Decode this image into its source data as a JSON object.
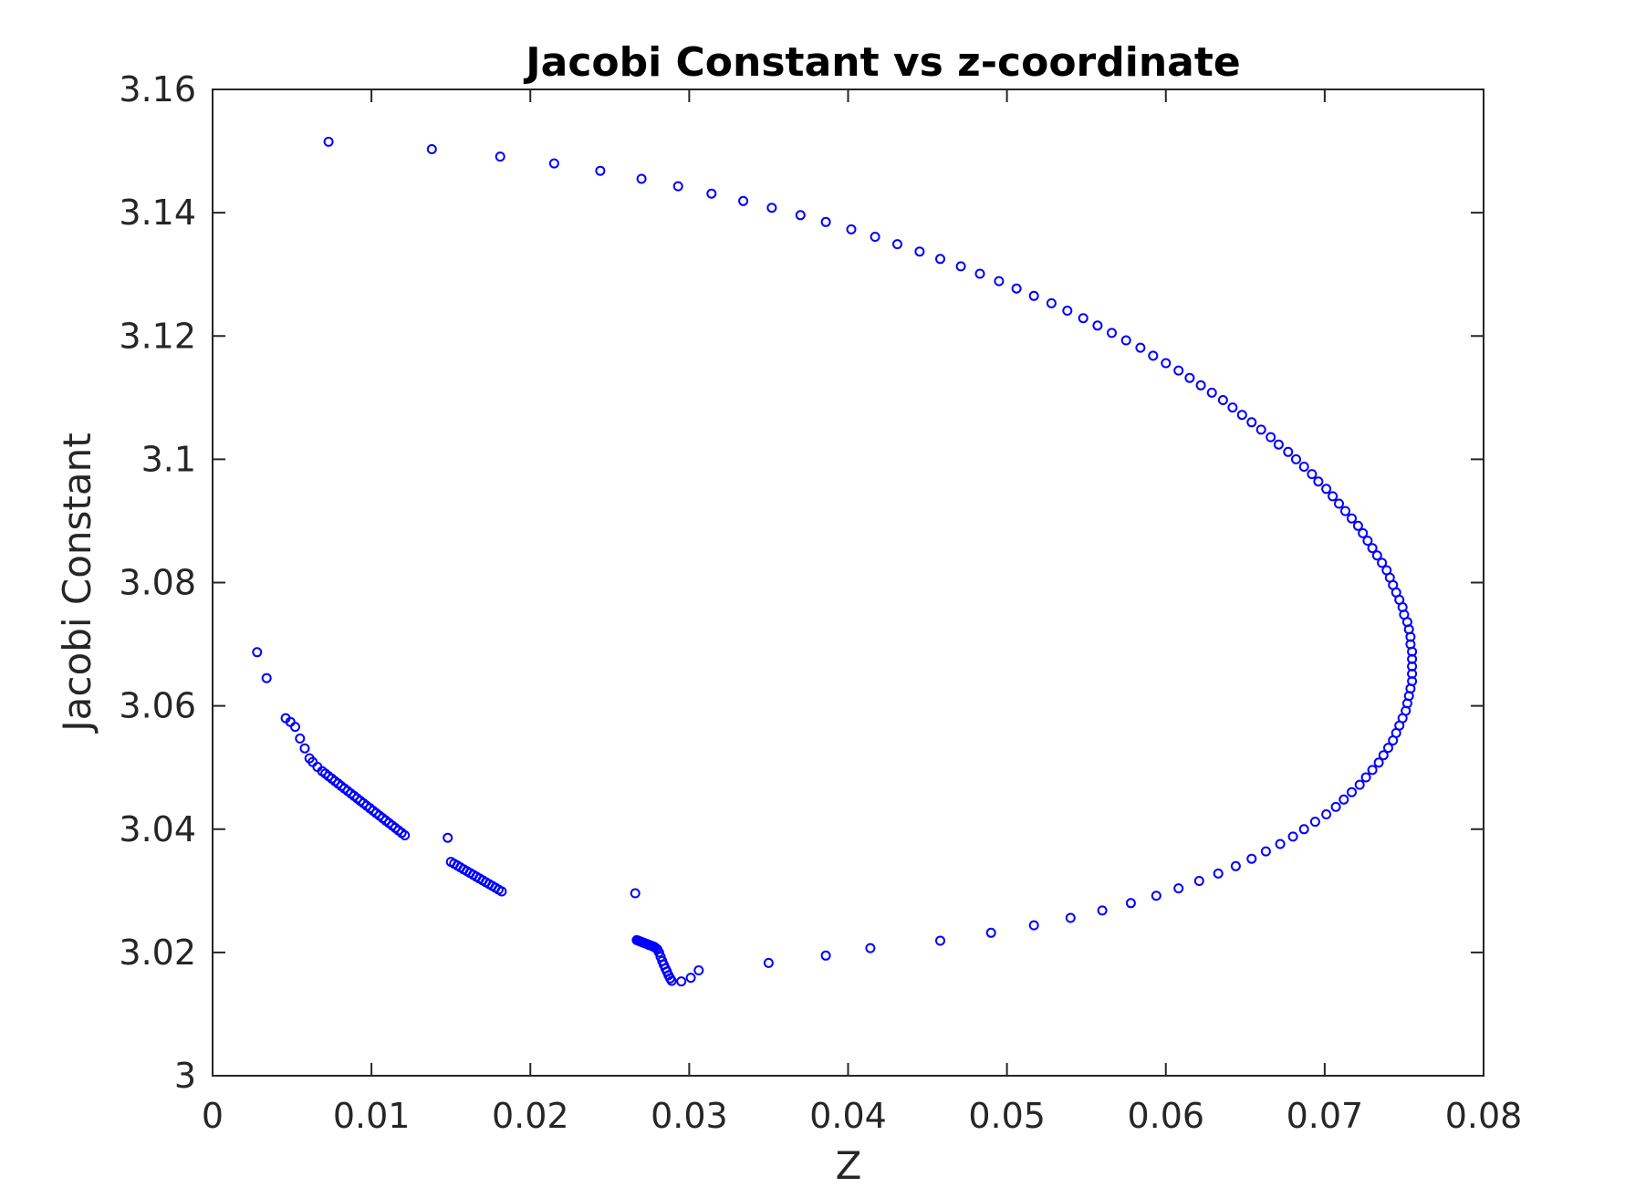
{
  "chart_data": {
    "type": "scatter",
    "title": "Jacobi Constant vs z-coordinate",
    "xlabel": "Z",
    "ylabel": "Jacobi Constant",
    "xlim": [
      0,
      0.08
    ],
    "ylim": [
      3.0,
      3.16
    ],
    "xticks": [
      "0",
      "0.01",
      "0.02",
      "0.03",
      "0.04",
      "0.05",
      "0.06",
      "0.07",
      "0.08"
    ],
    "yticks": [
      "3",
      "3.02",
      "3.04",
      "3.06",
      "3.08",
      "3.1",
      "3.12",
      "3.14",
      "3.16"
    ],
    "grid": false,
    "marker": "open-circle",
    "marker_color": "#0000ff",
    "axes_color": "#262626",
    "series": [
      {
        "x": [
          0.0073,
          0.0138,
          0.0181,
          0.0215,
          0.0244,
          0.027,
          0.0293,
          0.0314,
          0.0334,
          0.0352,
          0.037,
          0.0386,
          0.0402,
          0.0417,
          0.0431,
          0.0445,
          0.0458,
          0.0471,
          0.0483,
          0.0495,
          0.0506,
          0.0517,
          0.0528,
          0.0538,
          0.0548,
          0.0557,
          0.0566,
          0.0575,
          0.0584,
          0.0592,
          0.06,
          0.0608,
          0.0615,
          0.0622,
          0.0629,
          0.0636,
          0.0642,
          0.0648,
          0.0654,
          0.066,
          0.0666,
          0.0671,
          0.0677,
          0.0682,
          0.0687,
          0.0692,
          0.0696,
          0.0701,
          0.0705,
          0.0709,
          0.0713,
          0.0717,
          0.0721,
          0.0724,
          0.0727,
          0.073,
          0.0733,
          0.0736,
          0.0739,
          0.0741,
          0.0743,
          0.0745,
          0.0747,
          0.0749,
          0.075,
          0.0752,
          0.0753,
          0.0754,
          0.0754,
          0.0755,
          0.0755,
          0.0755,
          0.0755,
          0.0755,
          0.0754,
          0.0753,
          0.0752,
          0.0751,
          0.0749,
          0.0747,
          0.0745,
          0.0743,
          0.074,
          0.0737,
          0.0734,
          0.073,
          0.0726,
          0.0722,
          0.0717,
          0.0712,
          0.0707,
          0.0701,
          0.0694,
          0.0687,
          0.068,
          0.0672,
          0.0663,
          0.0654,
          0.0644,
          0.0633,
          0.0621,
          0.0608,
          0.0594,
          0.0578,
          0.056,
          0.054,
          0.0517,
          0.049,
          0.0458,
          0.0414,
          0.0386,
          0.035,
          0.0306,
          0.0301,
          0.0295,
          0.0289,
          0.0288,
          0.0287,
          0.0286,
          0.0285,
          0.0284,
          0.0283,
          0.0282,
          0.0281,
          0.028,
          0.0279,
          0.0278,
          0.0277,
          0.0276,
          0.0275,
          0.0274,
          0.0273,
          0.0272,
          0.0271,
          0.027,
          0.0269,
          0.0268,
          0.0267,
          0.0266,
          0.0182,
          0.018,
          0.0178,
          0.0176,
          0.0174,
          0.0172,
          0.017,
          0.0168,
          0.0166,
          0.0164,
          0.0162,
          0.016,
          0.0158,
          0.0156,
          0.0154,
          0.0152,
          0.015,
          0.0148,
          0.0121,
          0.0119,
          0.0117,
          0.0115,
          0.0113,
          0.0111,
          0.0109,
          0.0107,
          0.0105,
          0.0103,
          0.0101,
          0.0099,
          0.0097,
          0.0095,
          0.0093,
          0.0091,
          0.0089,
          0.0087,
          0.0085,
          0.0083,
          0.0081,
          0.0079,
          0.0077,
          0.0075,
          0.0073,
          0.0071,
          0.0069,
          0.0066,
          0.0063,
          0.0061,
          0.0058,
          0.0055,
          0.0052,
          0.0049,
          0.0046,
          0.0034,
          0.0028
        ],
        "y": [
          3.1515,
          3.1503,
          3.1491,
          3.148,
          3.1468,
          3.1455,
          3.1443,
          3.1431,
          3.1419,
          3.1408,
          3.1396,
          3.1385,
          3.1373,
          3.1361,
          3.1349,
          3.1337,
          3.1325,
          3.1313,
          3.1301,
          3.1289,
          3.1277,
          3.1265,
          3.1253,
          3.1241,
          3.1229,
          3.1217,
          3.1205,
          3.1193,
          3.1181,
          3.1168,
          3.1156,
          3.1144,
          3.1132,
          3.112,
          3.1108,
          3.1096,
          3.1084,
          3.1072,
          3.106,
          3.1048,
          3.1036,
          3.1024,
          3.1012,
          3.1,
          3.0988,
          3.0976,
          3.0964,
          3.0952,
          3.094,
          3.0928,
          3.0916,
          3.0904,
          3.0892,
          3.088,
          3.0868,
          3.0856,
          3.0844,
          3.0832,
          3.082,
          3.0808,
          3.0796,
          3.0784,
          3.0772,
          3.076,
          3.0748,
          3.0736,
          3.0724,
          3.0712,
          3.07,
          3.0688,
          3.0676,
          3.0664,
          3.0652,
          3.064,
          3.0628,
          3.0616,
          3.0604,
          3.0592,
          3.058,
          3.0568,
          3.0556,
          3.0544,
          3.0532,
          3.052,
          3.0508,
          3.0496,
          3.0484,
          3.0472,
          3.046,
          3.0448,
          3.0436,
          3.0424,
          3.0412,
          3.04,
          3.0388,
          3.0376,
          3.0364,
          3.0352,
          3.034,
          3.0328,
          3.0316,
          3.0304,
          3.0292,
          3.028,
          3.0268,
          3.0256,
          3.0244,
          3.0232,
          3.0219,
          3.0207,
          3.0195,
          3.0183,
          3.0171,
          3.0159,
          3.0153,
          3.0154,
          3.0158,
          3.0163,
          3.0169,
          3.0174,
          3.018,
          3.0186,
          3.0193,
          3.02,
          3.0205,
          3.0207,
          3.0209,
          3.021,
          3.0211,
          3.0212,
          3.0213,
          3.0214,
          3.0215,
          3.0216,
          3.0217,
          3.0218,
          3.0219,
          3.022,
          3.0296,
          3.0299,
          3.0302,
          3.0305,
          3.0308,
          3.0311,
          3.0314,
          3.0317,
          3.032,
          3.0323,
          3.0326,
          3.0329,
          3.0332,
          3.0335,
          3.0338,
          3.0341,
          3.0344,
          3.0347,
          3.0386,
          3.039,
          3.0394,
          3.0398,
          3.0402,
          3.0406,
          3.041,
          3.0414,
          3.0418,
          3.0422,
          3.0426,
          3.043,
          3.0434,
          3.0438,
          3.0442,
          3.0446,
          3.045,
          3.0454,
          3.0458,
          3.0462,
          3.0466,
          3.047,
          3.0474,
          3.0478,
          3.0482,
          3.0486,
          3.049,
          3.0494,
          3.0501,
          3.0509,
          3.0515,
          3.0531,
          3.0547,
          3.0566,
          3.0574,
          3.058,
          3.0645,
          3.0687
        ]
      }
    ]
  }
}
